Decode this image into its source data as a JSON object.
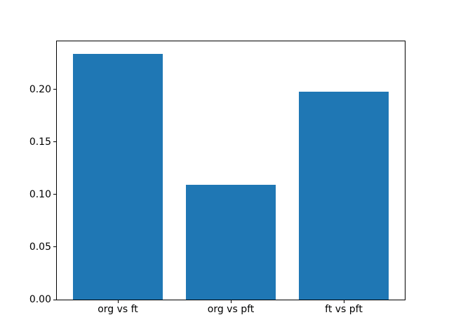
{
  "figure": {
    "background": "#ffffff"
  },
  "chart_data": {
    "type": "bar",
    "categories": [
      "org vs ft",
      "org vs pft",
      "ft vs pft"
    ],
    "values": [
      0.234,
      0.109,
      0.198
    ],
    "title": "",
    "xlabel": "",
    "ylabel": "",
    "ylim": [
      0,
      0.2457
    ],
    "xlim": [
      -0.54,
      2.54
    ],
    "bar_width": 0.8,
    "yticks": [
      0.0,
      0.05,
      0.1,
      0.15,
      0.2
    ],
    "ytick_labels": [
      "0.00",
      "0.05",
      "0.10",
      "0.15",
      "0.20"
    ],
    "bar_color": "#1f77b4",
    "axis_color": "#000000",
    "text_color": "#000000",
    "grid": false,
    "legend": null
  }
}
